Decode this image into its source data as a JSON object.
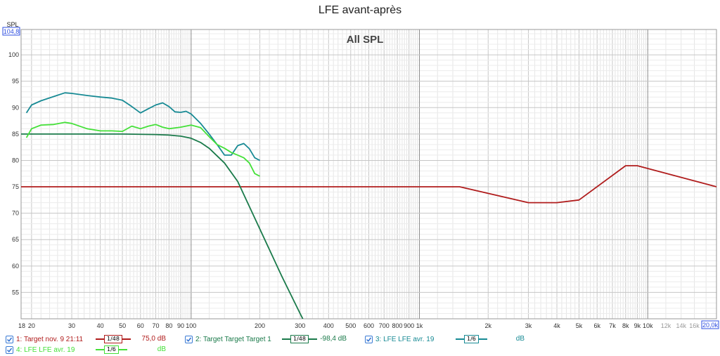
{
  "title": "LFE avant-après",
  "chart_data": {
    "type": "line",
    "title": "LFE avant-après",
    "plot_label": "All SPL",
    "ylabel": "SPL",
    "y_top_readout": "104,8",
    "x_scale": "log",
    "xlim": [
      18,
      20000
    ],
    "ylim": [
      50,
      104.8
    ],
    "x_max_readout": "20,0k",
    "grid": true,
    "y_ticks": [
      55,
      60,
      65,
      70,
      75,
      80,
      85,
      90,
      95,
      100
    ],
    "x_ticks": [
      {
        "v": 18,
        "label": "18"
      },
      {
        "v": 20,
        "label": "20"
      },
      {
        "v": 30,
        "label": "30"
      },
      {
        "v": 40,
        "label": "40"
      },
      {
        "v": 50,
        "label": "50"
      },
      {
        "v": 60,
        "label": "60"
      },
      {
        "v": 70,
        "label": "70"
      },
      {
        "v": 80,
        "label": "80"
      },
      {
        "v": 90,
        "label": "90"
      },
      {
        "v": 100,
        "label": "100"
      },
      {
        "v": 200,
        "label": "200"
      },
      {
        "v": 300,
        "label": "300"
      },
      {
        "v": 400,
        "label": "400"
      },
      {
        "v": 500,
        "label": "500"
      },
      {
        "v": 600,
        "label": "600"
      },
      {
        "v": 700,
        "label": "700"
      },
      {
        "v": 800,
        "label": "800"
      },
      {
        "v": 900,
        "label": "900"
      },
      {
        "v": 1000,
        "label": "1k"
      },
      {
        "v": 2000,
        "label": "2k"
      },
      {
        "v": 3000,
        "label": "3k"
      },
      {
        "v": 4000,
        "label": "4k"
      },
      {
        "v": 5000,
        "label": "5k"
      },
      {
        "v": 6000,
        "label": "6k"
      },
      {
        "v": 7000,
        "label": "7k"
      },
      {
        "v": 8000,
        "label": "8k"
      },
      {
        "v": 9000,
        "label": "9k"
      },
      {
        "v": 10000,
        "label": "10k"
      },
      {
        "v": 12000,
        "label": "12k"
      },
      {
        "v": 14000,
        "label": "14k"
      },
      {
        "v": 16000,
        "label": "16k"
      }
    ],
    "series": [
      {
        "name": "1: Target nov. 9 21:11",
        "color": "#b01c1c",
        "x": [
          18,
          20,
          50,
          100,
          1000,
          1500,
          3000,
          4000,
          5000,
          8000,
          9000,
          20000
        ],
        "y": [
          75,
          75,
          75,
          75,
          75,
          75,
          72,
          72,
          72.5,
          79,
          79,
          75
        ]
      },
      {
        "name": "2: Target Target Target 1",
        "color": "#1a7a4a",
        "x": [
          18,
          30,
          50,
          70,
          80,
          90,
          100,
          110,
          120,
          140,
          160,
          200,
          250,
          300,
          330
        ],
        "y": [
          85,
          85,
          85,
          84.9,
          84.8,
          84.6,
          84.2,
          83.4,
          82.3,
          79.5,
          76,
          67,
          58,
          51,
          47.5
        ]
      },
      {
        "name": "3: LFE LFE avr. 19",
        "color": "#178a94",
        "x": [
          19,
          20,
          22,
          25,
          28,
          30,
          35,
          40,
          45,
          50,
          55,
          60,
          65,
          70,
          75,
          80,
          85,
          90,
          95,
          100,
          110,
          120,
          130,
          140,
          150,
          160,
          170,
          180,
          190,
          200
        ],
        "y": [
          89,
          90.5,
          91.3,
          92.1,
          92.8,
          92.7,
          92.3,
          92,
          91.8,
          91.4,
          90.2,
          89,
          89.8,
          90.5,
          90.9,
          90.2,
          89.2,
          89.1,
          89.3,
          88.8,
          87,
          85,
          83,
          81,
          81,
          82.8,
          83.2,
          82.2,
          80.5,
          80
        ]
      },
      {
        "name": "4: LFE LFE avr. 19",
        "color": "#44e038",
        "x": [
          19,
          20,
          22,
          25,
          28,
          30,
          35,
          40,
          45,
          50,
          55,
          60,
          65,
          70,
          75,
          80,
          90,
          100,
          110,
          120,
          130,
          140,
          150,
          160,
          170,
          180,
          190,
          200
        ],
        "y": [
          84.3,
          86,
          86.7,
          86.8,
          87.2,
          87,
          86,
          85.6,
          85.6,
          85.5,
          86.5,
          86,
          86.5,
          86.8,
          86.3,
          86,
          86.3,
          86.7,
          86.2,
          84.5,
          83,
          82.3,
          81.5,
          81,
          80.5,
          79.5,
          77.5,
          77
        ]
      }
    ]
  },
  "legend": [
    {
      "label": "1: Target nov. 9 21:11",
      "smoothing": "1/48",
      "value": "75,0 dB",
      "color": "#b01c1c"
    },
    {
      "label": "2: Target Target Target 1",
      "smoothing": "1/48",
      "value": "-98,4 dB",
      "color": "#1a7a4a"
    },
    {
      "label": "3: LFE LFE avr. 19",
      "smoothing": "1/6",
      "value": "dB",
      "color": "#178a94"
    },
    {
      "label": "4: LFE LFE avr. 19",
      "smoothing": "1/6",
      "value": "dB",
      "color": "#44e038"
    }
  ]
}
